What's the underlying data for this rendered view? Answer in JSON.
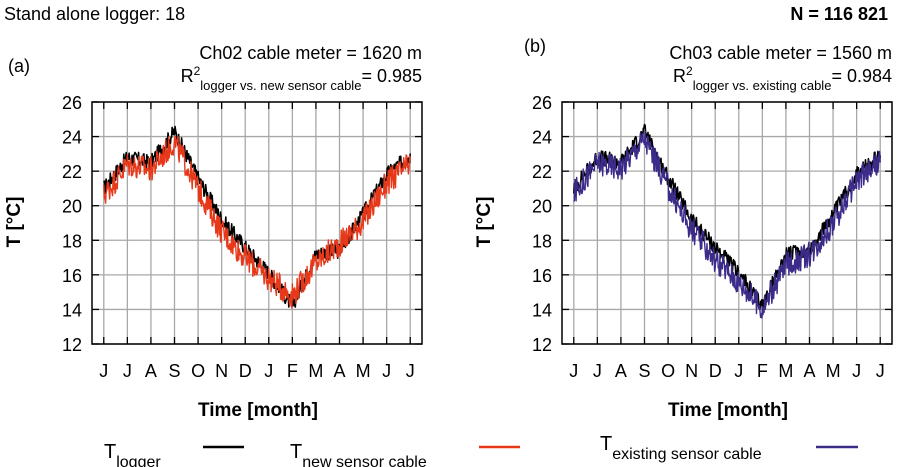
{
  "header": {
    "logger_label": "Stand alone logger: 18",
    "n_label": "N = 116 821",
    "n_color": "#3d2b8a"
  },
  "chart_data": [
    {
      "type": "line",
      "panel_label": "(a)",
      "annotation_line1": "Ch02 cable meter = 1620 m",
      "annotation_r": "R",
      "annotation_sup": "2",
      "annotation_sub": "logger vs. new sensor cable",
      "annotation_value": "= 0.985",
      "annotation_color": "#a0281c",
      "xlabel": "Time [month]",
      "ylabel": "T [°C]",
      "ylim": [
        12,
        26
      ],
      "yticks": [
        "12",
        "14",
        "16",
        "18",
        "20",
        "22",
        "24",
        "26"
      ],
      "grid": true,
      "categories": [
        "J",
        "J",
        "A",
        "S",
        "O",
        "N",
        "D",
        "J",
        "F",
        "M",
        "A",
        "M",
        "J",
        "J"
      ],
      "series": [
        {
          "name": "logger",
          "color": "#000000",
          "values": [
            21.0,
            22.8,
            22.5,
            24.3,
            21.6,
            19.2,
            17.6,
            16.1,
            14.2,
            17.2,
            17.4,
            19.5,
            21.8,
            22.9
          ]
        },
        {
          "name": "new sensor cable",
          "color": "#e8381a",
          "values": [
            20.6,
            22.4,
            22.1,
            23.7,
            21.0,
            18.5,
            17.0,
            15.8,
            14.8,
            16.7,
            17.8,
            19.1,
            21.3,
            22.4
          ]
        }
      ]
    },
    {
      "type": "line",
      "panel_label": "(b)",
      "annotation_line1": "Ch03 cable meter = 1560 m",
      "annotation_r": "R",
      "annotation_sup": "2",
      "annotation_sub": "logger vs. existing cable",
      "annotation_value": "= 0.984",
      "annotation_color": "#3d2b8a",
      "xlabel": "Time [month]",
      "ylabel": "T [°C]",
      "ylim": [
        12,
        26
      ],
      "yticks": [
        "12",
        "14",
        "16",
        "18",
        "20",
        "22",
        "24",
        "26"
      ],
      "grid": true,
      "categories": [
        "J",
        "J",
        "A",
        "S",
        "O",
        "N",
        "D",
        "J",
        "F",
        "M",
        "A",
        "M",
        "J",
        "J"
      ],
      "series": [
        {
          "name": "logger",
          "color": "#000000",
          "values": [
            21.0,
            22.8,
            22.5,
            24.3,
            21.6,
            19.2,
            17.6,
            16.1,
            14.2,
            17.2,
            17.4,
            19.5,
            21.8,
            22.9
          ]
        },
        {
          "name": "existing sensor cable",
          "color": "#3d2b8a",
          "values": [
            20.7,
            22.5,
            22.2,
            23.9,
            21.1,
            18.6,
            16.9,
            15.6,
            14.0,
            16.6,
            17.2,
            19.0,
            21.4,
            22.5
          ]
        }
      ]
    }
  ],
  "legend": [
    {
      "main": "T",
      "sub": "logger",
      "color": "#000000"
    },
    {
      "main": "T",
      "sub": "new sensor cable",
      "color": "#e8381a"
    },
    {
      "main": "T",
      "sub": "existing sensor cable",
      "color": "#3d2b8a"
    }
  ]
}
